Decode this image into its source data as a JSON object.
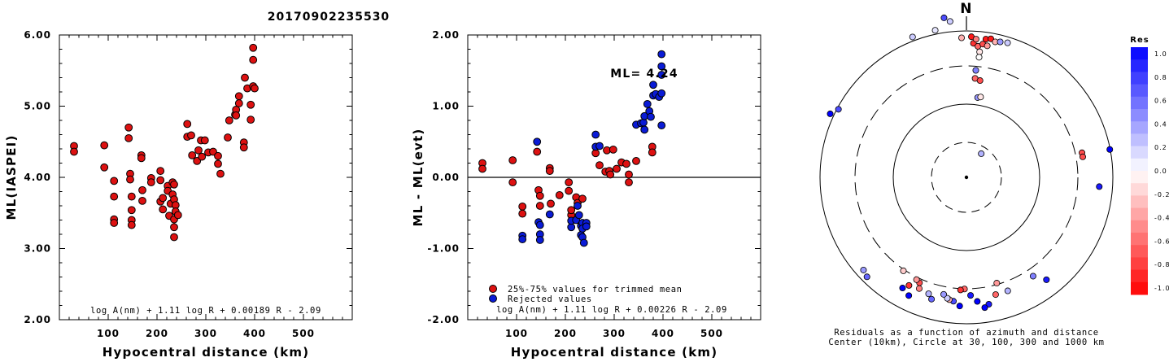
{
  "title": "20170902235530",
  "colors": {
    "red": "#dd1111",
    "blue": "#0a1bd6",
    "stroke": "#000000"
  },
  "chart_data": [
    {
      "id": "left",
      "type": "scatter",
      "xlabel": "Hypocentral distance (km)",
      "ylabel": "ML(IASPEI)",
      "xlim": [
        0,
        600
      ],
      "ylim": [
        2.0,
        6.0
      ],
      "xticks": [
        "100",
        "200",
        "300",
        "400",
        "500"
      ],
      "yticks": [
        "2.00",
        "3.00",
        "4.00",
        "5.00",
        "6.00"
      ],
      "formula": "log A(nm) + 1.11 log R + 0.00189 R - 2.09",
      "series": [
        {
          "color": "red",
          "points": [
            [
              30,
              4.44
            ],
            [
              30,
              4.36
            ],
            [
              92,
              4.45
            ],
            [
              92,
              4.14
            ],
            [
              112,
              3.95
            ],
            [
              112,
              3.73
            ],
            [
              112,
              3.41
            ],
            [
              112,
              3.36
            ],
            [
              142,
              4.7
            ],
            [
              142,
              4.55
            ],
            [
              145,
              4.05
            ],
            [
              145,
              3.97
            ],
            [
              148,
              3.73
            ],
            [
              148,
              3.54
            ],
            [
              148,
              3.4
            ],
            [
              148,
              3.33
            ],
            [
              168,
              4.31
            ],
            [
              168,
              4.27
            ],
            [
              170,
              3.82
            ],
            [
              170,
              3.67
            ],
            [
              188,
              3.99
            ],
            [
              188,
              3.93
            ],
            [
              207,
              4.09
            ],
            [
              207,
              3.96
            ],
            [
              207,
              3.66
            ],
            [
              212,
              3.71
            ],
            [
              212,
              3.55
            ],
            [
              222,
              3.88
            ],
            [
              222,
              3.81
            ],
            [
              225,
              3.46
            ],
            [
              228,
              3.63
            ],
            [
              232,
              3.93
            ],
            [
              232,
              3.76
            ],
            [
              235,
              3.9
            ],
            [
              235,
              3.69
            ],
            [
              235,
              3.41
            ],
            [
              235,
              3.3
            ],
            [
              235,
              3.16
            ],
            [
              238,
              3.61
            ],
            [
              238,
              3.52
            ],
            [
              243,
              3.47
            ],
            [
              262,
              4.75
            ],
            [
              262,
              4.57
            ],
            [
              270,
              4.59
            ],
            [
              272,
              4.31
            ],
            [
              282,
              4.23
            ],
            [
              285,
              4.38
            ],
            [
              290,
              4.52
            ],
            [
              292,
              4.29
            ],
            [
              298,
              4.52
            ],
            [
              305,
              4.35
            ],
            [
              315,
              4.36
            ],
            [
              325,
              4.3
            ],
            [
              325,
              4.19
            ],
            [
              330,
              4.05
            ],
            [
              345,
              4.56
            ],
            [
              348,
              4.8
            ],
            [
              360,
              4.88
            ],
            [
              362,
              4.95
            ],
            [
              362,
              4.87
            ],
            [
              368,
              5.14
            ],
            [
              368,
              5.04
            ],
            [
              378,
              4.49
            ],
            [
              378,
              4.42
            ],
            [
              380,
              5.4
            ],
            [
              385,
              5.25
            ],
            [
              392,
              5.02
            ],
            [
              392,
              4.81
            ],
            [
              397,
              5.82
            ],
            [
              397,
              5.65
            ],
            [
              397,
              5.28
            ],
            [
              400,
              5.25
            ]
          ]
        }
      ]
    },
    {
      "id": "middle",
      "type": "scatter",
      "xlabel": "Hypocentral distance (km)",
      "ylabel": "ML - ML(evt)",
      "xlim": [
        0,
        600
      ],
      "ylim": [
        -2.0,
        2.0
      ],
      "zero_line": true,
      "xticks": [
        "100",
        "200",
        "300",
        "400",
        "500"
      ],
      "yticks": [
        "-2.00",
        "-1.00",
        "0.00",
        "1.00",
        "2.00"
      ],
      "annotation": "ML= 4.24",
      "legend": [
        {
          "color": "red",
          "label": "25%-75% values for trimmed mean"
        },
        {
          "color": "blue",
          "label": "Rejected values"
        }
      ],
      "formula": "log A(nm) + 1.11 log R + 0.00226 R - 2.09",
      "series": [
        {
          "color": "red",
          "points": [
            [
              30,
              0.2
            ],
            [
              30,
              0.12
            ],
            [
              92,
              0.24
            ],
            [
              92,
              -0.07
            ],
            [
              112,
              -0.41
            ],
            [
              112,
              -0.51
            ],
            [
              142,
              0.36
            ],
            [
              145,
              -0.18
            ],
            [
              148,
              -0.26
            ],
            [
              148,
              -0.4
            ],
            [
              168,
              0.13
            ],
            [
              168,
              0.09
            ],
            [
              170,
              -0.37
            ],
            [
              188,
              -0.25
            ],
            [
              207,
              -0.07
            ],
            [
              207,
              -0.19
            ],
            [
              212,
              -0.53
            ],
            [
              212,
              -0.46
            ],
            [
              222,
              -0.28
            ],
            [
              225,
              -0.36
            ],
            [
              235,
              -0.3
            ],
            [
              262,
              0.34
            ],
            [
              270,
              0.17
            ],
            [
              282,
              0.08
            ],
            [
              285,
              0.38
            ],
            [
              290,
              0.09
            ],
            [
              292,
              0.04
            ],
            [
              298,
              0.39
            ],
            [
              305,
              0.12
            ],
            [
              315,
              0.21
            ],
            [
              325,
              0.19
            ],
            [
              330,
              0.04
            ],
            [
              330,
              -0.07
            ],
            [
              345,
              0.23
            ],
            [
              378,
              0.43
            ],
            [
              378,
              0.35
            ]
          ]
        },
        {
          "color": "blue",
          "points": [
            [
              112,
              -0.82
            ],
            [
              112,
              -0.87
            ],
            [
              142,
              0.5
            ],
            [
              145,
              -0.63
            ],
            [
              148,
              -0.67
            ],
            [
              148,
              -0.8
            ],
            [
              148,
              -0.88
            ],
            [
              168,
              -0.52
            ],
            [
              212,
              -0.7
            ],
            [
              212,
              -0.61
            ],
            [
              222,
              -0.6
            ],
            [
              225,
              -0.4
            ],
            [
              228,
              -0.53
            ],
            [
              232,
              -0.68
            ],
            [
              232,
              -0.81
            ],
            [
              235,
              -0.64
            ],
            [
              235,
              -0.72
            ],
            [
              235,
              -0.84
            ],
            [
              238,
              -0.92
            ],
            [
              243,
              -0.64
            ],
            [
              243,
              -0.69
            ],
            [
              262,
              0.6
            ],
            [
              262,
              0.43
            ],
            [
              270,
              0.44
            ],
            [
              345,
              0.74
            ],
            [
              355,
              0.76
            ],
            [
              360,
              0.77
            ],
            [
              362,
              0.86
            ],
            [
              362,
              0.67
            ],
            [
              368,
              1.03
            ],
            [
              372,
              0.93
            ],
            [
              375,
              0.85
            ],
            [
              380,
              1.15
            ],
            [
              380,
              1.3
            ],
            [
              385,
              1.17
            ],
            [
              392,
              1.13
            ],
            [
              397,
              1.73
            ],
            [
              397,
              1.56
            ],
            [
              397,
              1.44
            ],
            [
              397,
              1.18
            ],
            [
              397,
              0.73
            ]
          ]
        }
      ]
    },
    {
      "id": "right",
      "type": "polar-scatter",
      "north_label": "N",
      "caption_line1": "Residuals as a function of azimuth and distance",
      "caption_line2": "Center (10km), Circle at 30, 100, 300 and 1000 km",
      "colorbar": {
        "title": "Res",
        "labels": [
          "1.0",
          "0.8",
          "0.6",
          "0.4",
          "0.2",
          "0.0",
          "-0.2",
          "-0.4",
          "-0.6",
          "-0.8",
          "-1.0"
        ],
        "range": [
          1.0,
          -1.0
        ]
      },
      "points": [
        {
          "az": 348,
          "dist": 280,
          "res": 0.1
        },
        {
          "az": 352,
          "dist": 300,
          "res": 0.7
        },
        {
          "az": 354,
          "dist": 292,
          "res": 0.2
        },
        {
          "az": 358,
          "dist": 260,
          "res": -0.3
        },
        {
          "az": 2,
          "dist": 262,
          "res": -0.9
        },
        {
          "az": 3,
          "dist": 250,
          "res": -0.8
        },
        {
          "az": 4,
          "dist": 258,
          "res": -0.5
        },
        {
          "az": 5,
          "dist": 245,
          "res": -0.6
        },
        {
          "az": 6,
          "dist": 235,
          "res": -0.1
        },
        {
          "az": 6,
          "dist": 225,
          "res": 0.0
        },
        {
          "az": 7,
          "dist": 250,
          "res": -0.7
        },
        {
          "az": 8,
          "dist": 260,
          "res": -0.9
        },
        {
          "az": 9,
          "dist": 248,
          "res": -0.4
        },
        {
          "az": 10,
          "dist": 262,
          "res": -0.9
        },
        {
          "az": 12,
          "dist": 258,
          "res": -0.3
        },
        {
          "az": 14,
          "dist": 260,
          "res": 0.4
        },
        {
          "az": 17,
          "dist": 262,
          "res": 0.2
        },
        {
          "az": 5,
          "dist": 200,
          "res": 0.5
        },
        {
          "az": 5,
          "dist": 185,
          "res": -0.6
        },
        {
          "az": 8,
          "dist": 182,
          "res": -0.7
        },
        {
          "az": 8,
          "dist": 150,
          "res": 0.4
        },
        {
          "az": 10,
          "dist": 152,
          "res": -0.1
        },
        {
          "az": 32,
          "dist": 52,
          "res": 0.3
        },
        {
          "az": 78,
          "dist": 220,
          "res": -0.7
        },
        {
          "az": 80,
          "dist": 220,
          "res": -0.7
        },
        {
          "az": 79,
          "dist": 272,
          "res": 1.0
        },
        {
          "az": 94,
          "dist": 248,
          "res": 0.9
        },
        {
          "az": 142,
          "dist": 242,
          "res": 0.9
        },
        {
          "az": 146,
          "dist": 222,
          "res": 0.5
        },
        {
          "az": 164,
          "dist": 205,
          "res": -0.4
        },
        {
          "az": 160,
          "dist": 225,
          "res": 0.3
        },
        {
          "az": 166,
          "dist": 225,
          "res": -0.6
        },
        {
          "az": 170,
          "dist": 240,
          "res": 0.9
        },
        {
          "az": 172,
          "dist": 245,
          "res": 1.0
        },
        {
          "az": 175,
          "dist": 232,
          "res": 1.0
        },
        {
          "az": 178,
          "dist": 220,
          "res": 0.9
        },
        {
          "az": 181,
          "dist": 208,
          "res": -0.6
        },
        {
          "az": 183,
          "dist": 210,
          "res": -0.8
        },
        {
          "az": 183,
          "dist": 240,
          "res": 1.0
        },
        {
          "az": 186,
          "dist": 232,
          "res": 0.7
        },
        {
          "az": 188,
          "dist": 230,
          "res": -0.3
        },
        {
          "az": 189,
          "dist": 228,
          "res": 0.2
        },
        {
          "az": 191,
          "dist": 222,
          "res": 0.4
        },
        {
          "az": 196,
          "dist": 236,
          "res": 0.6
        },
        {
          "az": 198,
          "dist": 228,
          "res": 0.3
        },
        {
          "az": 203,
          "dist": 225,
          "res": -0.5
        },
        {
          "az": 204,
          "dist": 215,
          "res": -0.7
        },
        {
          "az": 206,
          "dist": 212,
          "res": -0.4
        },
        {
          "az": 208,
          "dist": 228,
          "res": -0.8
        },
        {
          "az": 206,
          "dist": 245,
          "res": 1.0
        },
        {
          "az": 210,
          "dist": 238,
          "res": 1.0
        },
        {
          "az": 214,
          "dist": 210,
          "res": -0.2
        },
        {
          "az": 225,
          "dist": 262,
          "res": 0.6
        },
        {
          "az": 228,
          "dist": 258,
          "res": 0.4
        },
        {
          "az": 298,
          "dist": 270,
          "res": 0.7
        },
        {
          "az": 295,
          "dist": 280,
          "res": 1.0
        },
        {
          "az": 339,
          "dist": 280,
          "res": 0.2
        }
      ]
    }
  ]
}
